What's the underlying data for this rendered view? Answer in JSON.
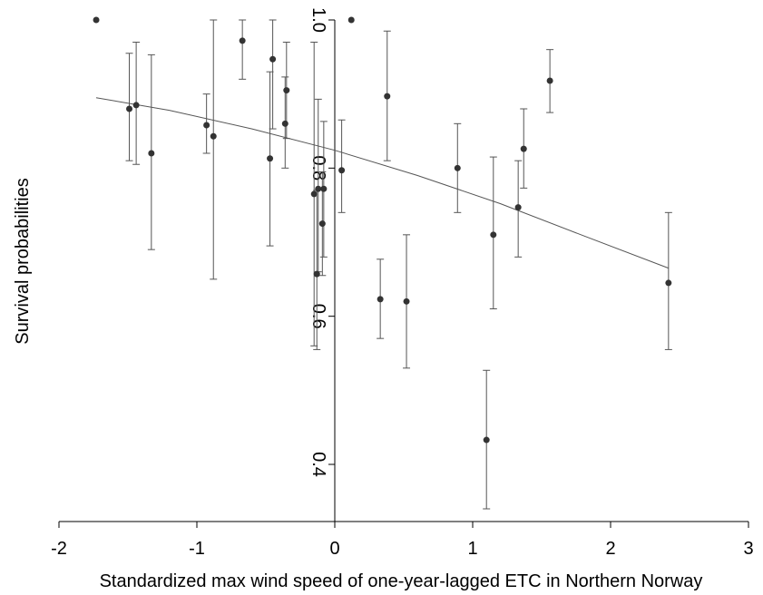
{
  "chart_data": {
    "type": "scatter",
    "title": "",
    "xlabel": "Standardized max wind speed of one-year-lagged ETC in Northern Norway",
    "ylabel": "Survival probabilities",
    "xlim": [
      -2,
      3
    ],
    "ylim": [
      0.33,
      1.0
    ],
    "x_ticks": [
      -2,
      -1,
      0,
      1,
      2,
      3
    ],
    "x_tick_labels": [
      "-2",
      "-1",
      "0",
      "1",
      "2",
      "3"
    ],
    "y_ticks": [
      0.4,
      0.6,
      0.8,
      1.0
    ],
    "y_tick_labels": [
      "0.4",
      "0.6",
      "0.8",
      "1.0"
    ],
    "grid": false,
    "legend": "none",
    "colors": {
      "points": "#333333",
      "line": "#555555",
      "axes": "#000000",
      "errorbars": "#555555"
    },
    "points": [
      {
        "x": -1.73,
        "y": 1.0,
        "lo": null,
        "hi": null
      },
      {
        "x": -1.49,
        "y": 0.88,
        "lo": 0.81,
        "hi": 0.955
      },
      {
        "x": -1.44,
        "y": 0.885,
        "lo": 0.805,
        "hi": 0.97
      },
      {
        "x": -1.33,
        "y": 0.82,
        "lo": 0.69,
        "hi": 0.953
      },
      {
        "x": -0.93,
        "y": 0.858,
        "lo": 0.82,
        "hi": 0.9
      },
      {
        "x": -0.88,
        "y": 0.843,
        "lo": 0.65,
        "hi": 1.0
      },
      {
        "x": -0.67,
        "y": 0.972,
        "lo": 0.92,
        "hi": 1.0
      },
      {
        "x": -0.47,
        "y": 0.813,
        "lo": 0.695,
        "hi": 0.93
      },
      {
        "x": -0.45,
        "y": 0.947,
        "lo": 0.853,
        "hi": 1.0
      },
      {
        "x": -0.36,
        "y": 0.86,
        "lo": 0.8,
        "hi": 0.923
      },
      {
        "x": -0.35,
        "y": 0.905,
        "lo": 0.84,
        "hi": 0.97
      },
      {
        "x": -0.15,
        "y": 0.765,
        "lo": 0.56,
        "hi": 0.97
      },
      {
        "x": -0.13,
        "y": 0.657,
        "lo": 0.555,
        "hi": 0.77
      },
      {
        "x": -0.12,
        "y": 0.772,
        "lo": 0.66,
        "hi": 0.893
      },
      {
        "x": -0.09,
        "y": 0.725,
        "lo": 0.655,
        "hi": 0.795
      },
      {
        "x": -0.08,
        "y": 0.772,
        "lo": 0.68,
        "hi": 0.863
      },
      {
        "x": 0.05,
        "y": 0.797,
        "lo": 0.74,
        "hi": 0.865
      },
      {
        "x": 0.12,
        "y": 1.0,
        "lo": null,
        "hi": null
      },
      {
        "x": 0.33,
        "y": 0.623,
        "lo": 0.57,
        "hi": 0.677
      },
      {
        "x": 0.38,
        "y": 0.897,
        "lo": 0.81,
        "hi": 0.985
      },
      {
        "x": 0.52,
        "y": 0.62,
        "lo": 0.53,
        "hi": 0.71
      },
      {
        "x": 0.89,
        "y": 0.8,
        "lo": 0.74,
        "hi": 0.86
      },
      {
        "x": 1.1,
        "y": 0.433,
        "lo": 0.34,
        "hi": 0.527
      },
      {
        "x": 1.15,
        "y": 0.71,
        "lo": 0.61,
        "hi": 0.815
      },
      {
        "x": 1.33,
        "y": 0.747,
        "lo": 0.68,
        "hi": 0.81
      },
      {
        "x": 1.37,
        "y": 0.826,
        "lo": 0.773,
        "hi": 0.88
      },
      {
        "x": 1.56,
        "y": 0.918,
        "lo": 0.875,
        "hi": 0.96
      },
      {
        "x": 2.42,
        "y": 0.645,
        "lo": 0.555,
        "hi": 0.74
      }
    ],
    "fit_line": {
      "x": [
        -1.73,
        -1.2,
        -0.6,
        0.0,
        0.6,
        1.2,
        1.8,
        2.42
      ],
      "y": [
        0.895,
        0.878,
        0.853,
        0.824,
        0.79,
        0.752,
        0.709,
        0.665
      ]
    }
  }
}
